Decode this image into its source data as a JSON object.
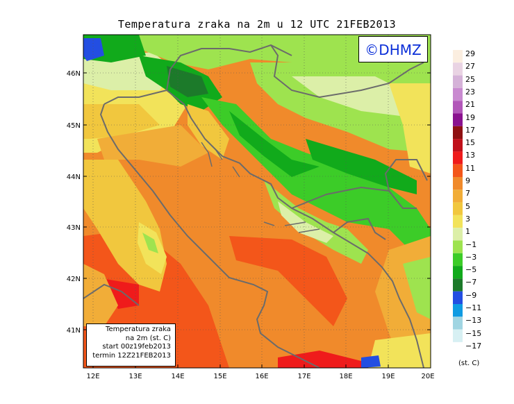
{
  "title": "Temperatura zraka na 2m u 12 UTC 21FEB2013",
  "logo_text": "©DHMZ",
  "info_box": {
    "line1": "Temperatura zraka",
    "line2": "na 2m (st. C)",
    "line3": "start 00z19feb2013",
    "line4": "termin 12Z21FEB2013"
  },
  "lat_ticks": [
    "46N",
    "45N",
    "44N",
    "43N",
    "42N",
    "41N"
  ],
  "lon_ticks": [
    "12E",
    "13E",
    "14E",
    "15E",
    "16E",
    "17E",
    "18E",
    "19E",
    "20E"
  ],
  "colorbar": {
    "unit": "(st. C)",
    "labels": [
      "29",
      "27",
      "25",
      "23",
      "21",
      "19",
      "17",
      "15",
      "13",
      "11",
      "9",
      "7",
      "5",
      "3",
      "1",
      "−1",
      "−3",
      "−5",
      "−7",
      "−9",
      "−11",
      "−13",
      "−15",
      "−17"
    ],
    "colors": [
      "#fbeee0",
      "#e9d3e3",
      "#d5b2d8",
      "#c98ad0",
      "#b257b9",
      "#8a128f",
      "#8e1012",
      "#c0101a",
      "#ef1b1b",
      "#f3561a",
      "#f08a2b",
      "#f1ad38",
      "#f1c73e",
      "#f2e35a",
      "#dcefa8",
      "#9ee34f",
      "#3ccc28",
      "#11aa1b",
      "#1c7a2a",
      "#234ee2",
      "#0f9be2",
      "#a0d5e2",
      "#d7f0f3",
      "#ffffff"
    ]
  }
}
